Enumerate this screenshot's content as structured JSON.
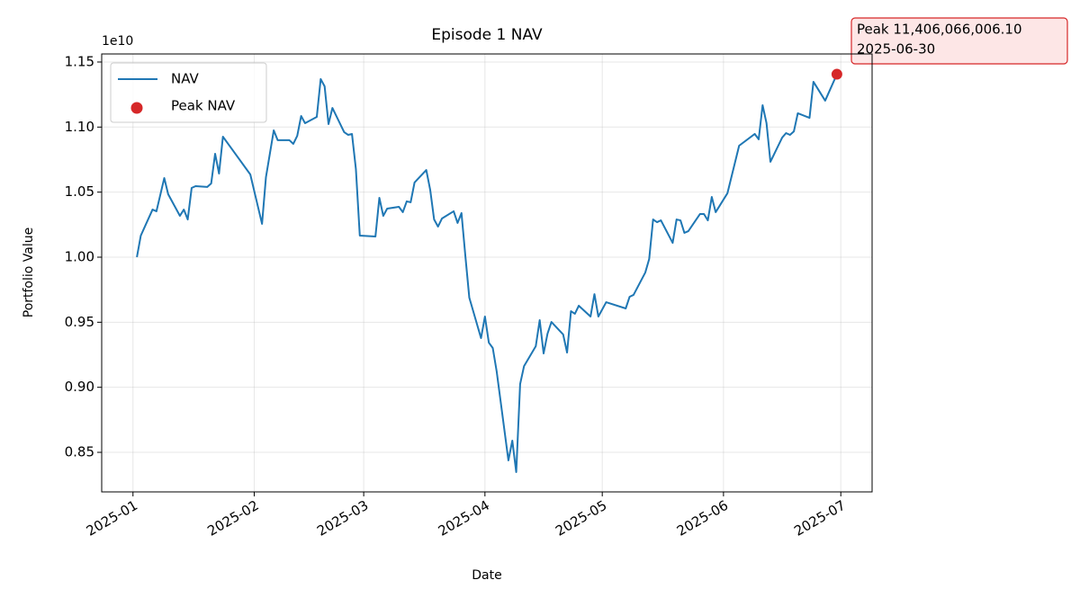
{
  "chart_data": {
    "type": "line",
    "title": "Episode 1 NAV",
    "x_label": "Date",
    "y_label": "Portfolio Value",
    "y_offset_label": "1e10",
    "x": [
      "2025-01-02",
      "2025-01-03",
      "2025-01-06",
      "2025-01-07",
      "2025-01-09",
      "2025-01-10",
      "2025-01-13",
      "2025-01-14",
      "2025-01-15",
      "2025-01-16",
      "2025-01-17",
      "2025-01-20",
      "2025-01-21",
      "2025-01-22",
      "2025-01-23",
      "2025-01-24",
      "2025-01-31",
      "2025-02-03",
      "2025-02-04",
      "2025-02-06",
      "2025-02-07",
      "2025-02-10",
      "2025-02-11",
      "2025-02-12",
      "2025-02-13",
      "2025-02-14",
      "2025-02-17",
      "2025-02-18",
      "2025-02-19",
      "2025-02-20",
      "2025-02-21",
      "2025-02-24",
      "2025-02-25",
      "2025-02-26",
      "2025-02-27",
      "2025-02-28",
      "2025-03-04",
      "2025-03-05",
      "2025-03-06",
      "2025-03-07",
      "2025-03-10",
      "2025-03-11",
      "2025-03-12",
      "2025-03-13",
      "2025-03-14",
      "2025-03-17",
      "2025-03-18",
      "2025-03-19",
      "2025-03-20",
      "2025-03-21",
      "2025-03-24",
      "2025-03-25",
      "2025-03-26",
      "2025-03-27",
      "2025-03-28",
      "2025-03-31",
      "2025-04-01",
      "2025-04-02",
      "2025-04-03",
      "2025-04-04",
      "2025-04-07",
      "2025-04-08",
      "2025-04-09",
      "2025-04-10",
      "2025-04-11",
      "2025-04-14",
      "2025-04-15",
      "2025-04-16",
      "2025-04-17",
      "2025-04-18",
      "2025-04-21",
      "2025-04-22",
      "2025-04-23",
      "2025-04-24",
      "2025-04-25",
      "2025-04-28",
      "2025-04-29",
      "2025-04-30",
      "2025-05-02",
      "2025-05-07",
      "2025-05-08",
      "2025-05-09",
      "2025-05-12",
      "2025-05-13",
      "2025-05-14",
      "2025-05-15",
      "2025-05-16",
      "2025-05-19",
      "2025-05-20",
      "2025-05-21",
      "2025-05-22",
      "2025-05-23",
      "2025-05-26",
      "2025-05-27",
      "2025-05-28",
      "2025-05-29",
      "2025-05-30",
      "2025-06-02",
      "2025-06-05",
      "2025-06-09",
      "2025-06-10",
      "2025-06-11",
      "2025-06-12",
      "2025-06-13",
      "2025-06-16",
      "2025-06-17",
      "2025-06-18",
      "2025-06-19",
      "2025-06-20",
      "2025-06-23",
      "2025-06-24",
      "2025-06-27",
      "2025-06-30"
    ],
    "series": [
      {
        "name": "NAV",
        "color": "#1f77b4",
        "values": [
          10000000000,
          10166000000,
          10366000000,
          10353000000,
          10608000000,
          10484000000,
          10318000000,
          10366000000,
          10290000000,
          10532000000,
          10546000000,
          10540000000,
          10567000000,
          10795000000,
          10643000000,
          10926000000,
          10636000000,
          10256000000,
          10615000000,
          10975000000,
          10899000000,
          10899000000,
          10871000000,
          10933000000,
          11085000000,
          11030000000,
          11078000000,
          11369000000,
          11313000000,
          11023000000,
          11147000000,
          10961000000,
          10940000000,
          10947000000,
          10677000000,
          10166000000,
          10159000000,
          10456000000,
          10318000000,
          10373000000,
          10387000000,
          10346000000,
          10429000000,
          10422000000,
          10574000000,
          10670000000,
          10518000000,
          10290000000,
          10235000000,
          10297000000,
          10353000000,
          10263000000,
          10339000000,
          10007000000,
          9689000000,
          9378000000,
          9544000000,
          9343000000,
          9302000000,
          9122000000,
          8438000000,
          8590000000,
          8348000000,
          9025000000,
          9163000000,
          9316000000,
          9516000000,
          9260000000,
          9412000000,
          9502000000,
          9406000000,
          9267000000,
          9585000000,
          9565000000,
          9627000000,
          9544000000,
          9716000000,
          9544000000,
          9654000000,
          9606000000,
          9696000000,
          9710000000,
          9882000000,
          9986000000,
          10290000000,
          10269000000,
          10283000000,
          10110000000,
          10290000000,
          10283000000,
          10187000000,
          10200000000,
          10332000000,
          10332000000,
          10283000000,
          10463000000,
          10346000000,
          10491000000,
          10857000000,
          10947000000,
          10906000000,
          11168000000,
          11030000000,
          10733000000,
          10919000000,
          10954000000,
          10940000000,
          10967000000,
          11106000000,
          11071000000,
          11348000000,
          11203000000,
          11406066006.1
        ]
      }
    ],
    "peak": {
      "name": "Peak NAV",
      "color": "#d62728",
      "x": "2025-06-30",
      "value": 11406066006.1,
      "value_label": "Peak 11,406,066,006.10",
      "date_label": "2025-06-30"
    },
    "xlim": [
      "2024-12-24",
      "2025-07-09"
    ],
    "xticks": [
      {
        "value": "2025-01-01",
        "label": "2025-01"
      },
      {
        "value": "2025-02-01",
        "label": "2025-02"
      },
      {
        "value": "2025-03-01",
        "label": "2025-03"
      },
      {
        "value": "2025-04-01",
        "label": "2025-04"
      },
      {
        "value": "2025-05-01",
        "label": "2025-05"
      },
      {
        "value": "2025-06-01",
        "label": "2025-06"
      },
      {
        "value": "2025-07-01",
        "label": "2025-07"
      }
    ],
    "ylim": [
      8196000000,
      11562000000
    ],
    "yticks": [
      {
        "value": 8500000000,
        "label": "0.85"
      },
      {
        "value": 9000000000,
        "label": "0.90"
      },
      {
        "value": 9500000000,
        "label": "0.95"
      },
      {
        "value": 10000000000,
        "label": "1.00"
      },
      {
        "value": 10500000000,
        "label": "1.05"
      },
      {
        "value": 11000000000,
        "label": "1.10"
      },
      {
        "value": 11500000000,
        "label": "1.15"
      }
    ],
    "grid": true,
    "legend": "upper left"
  }
}
